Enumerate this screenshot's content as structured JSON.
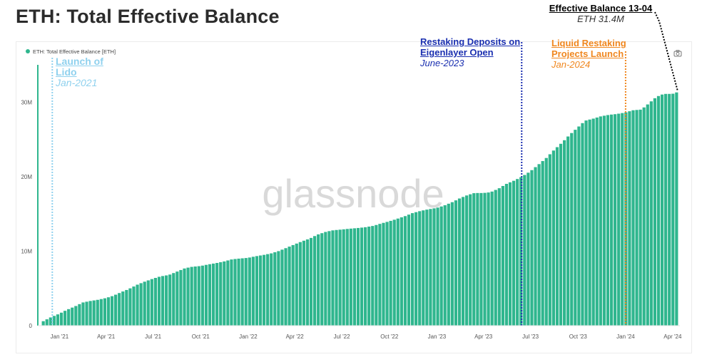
{
  "page_title": "ETH: Total Effective Balance",
  "watermark": "glassnode",
  "legend_label": "ETH: Total Effective Balance [ETH]",
  "colors": {
    "series": "#2fb68e",
    "lido": "#8fd1ee",
    "restaking": "#1a2fb0",
    "lrt": "#f0871f",
    "final": "#000000"
  },
  "annotations": {
    "lido": {
      "title_l1": "Launch of",
      "title_l2": "Lido",
      "subtitle": "Jan-2021",
      "date": "2020-12-18"
    },
    "restaking": {
      "title_l1": "Restaking Deposits on",
      "title_l2": "Eigenlayer Open",
      "subtitle": "June-2023",
      "date": "2023-06-14"
    },
    "lrt": {
      "title_l1": "Liquid Restaking",
      "title_l2": "Projects Launch",
      "subtitle": "Jan-2024",
      "date": "2024-01-01"
    },
    "final": {
      "title": "Effective Balance 13-04",
      "subtitle": "ETH 31.4M",
      "date": "2024-04-13"
    }
  },
  "chart_data": {
    "type": "area",
    "title": "ETH: Total Effective Balance",
    "series": [
      {
        "name": "ETH: Total Effective Balance [ETH]",
        "points": [
          [
            "2020-12-01",
            0.6
          ],
          [
            "2020-12-15",
            1.1
          ],
          [
            "2021-01-01",
            1.6
          ],
          [
            "2021-01-15",
            2.1
          ],
          [
            "2021-02-01",
            2.6
          ],
          [
            "2021-02-15",
            3.1
          ],
          [
            "2021-03-01",
            3.3
          ],
          [
            "2021-03-15",
            3.45
          ],
          [
            "2021-04-01",
            3.7
          ],
          [
            "2021-04-15",
            4.0
          ],
          [
            "2021-05-01",
            4.5
          ],
          [
            "2021-05-15",
            4.9
          ],
          [
            "2021-06-01",
            5.5
          ],
          [
            "2021-06-15",
            5.9
          ],
          [
            "2021-07-01",
            6.3
          ],
          [
            "2021-07-15",
            6.6
          ],
          [
            "2021-08-01",
            6.8
          ],
          [
            "2021-08-15",
            7.2
          ],
          [
            "2021-09-01",
            7.7
          ],
          [
            "2021-09-15",
            7.9
          ],
          [
            "2021-10-01",
            8.0
          ],
          [
            "2021-10-15",
            8.2
          ],
          [
            "2021-11-01",
            8.4
          ],
          [
            "2021-11-15",
            8.6
          ],
          [
            "2021-12-01",
            8.9
          ],
          [
            "2021-12-15",
            9.0
          ],
          [
            "2022-01-01",
            9.1
          ],
          [
            "2022-01-15",
            9.3
          ],
          [
            "2022-02-01",
            9.5
          ],
          [
            "2022-02-15",
            9.7
          ],
          [
            "2022-03-01",
            10.0
          ],
          [
            "2022-03-15",
            10.4
          ],
          [
            "2022-04-01",
            10.9
          ],
          [
            "2022-04-15",
            11.3
          ],
          [
            "2022-05-01",
            11.7
          ],
          [
            "2022-05-15",
            12.2
          ],
          [
            "2022-06-01",
            12.6
          ],
          [
            "2022-06-15",
            12.8
          ],
          [
            "2022-07-01",
            12.9
          ],
          [
            "2022-07-15",
            13.0
          ],
          [
            "2022-08-01",
            13.1
          ],
          [
            "2022-08-15",
            13.2
          ],
          [
            "2022-09-01",
            13.4
          ],
          [
            "2022-09-15",
            13.7
          ],
          [
            "2022-10-01",
            14.0
          ],
          [
            "2022-10-15",
            14.3
          ],
          [
            "2022-11-01",
            14.7
          ],
          [
            "2022-11-15",
            15.1
          ],
          [
            "2022-12-01",
            15.4
          ],
          [
            "2022-12-15",
            15.6
          ],
          [
            "2023-01-01",
            15.8
          ],
          [
            "2023-01-15",
            16.1
          ],
          [
            "2023-02-01",
            16.6
          ],
          [
            "2023-02-15",
            17.1
          ],
          [
            "2023-03-01",
            17.5
          ],
          [
            "2023-03-15",
            17.8
          ],
          [
            "2023-04-01",
            17.8
          ],
          [
            "2023-04-15",
            17.9
          ],
          [
            "2023-05-01",
            18.4
          ],
          [
            "2023-05-15",
            19.0
          ],
          [
            "2023-06-01",
            19.5
          ],
          [
            "2023-06-15",
            20.0
          ],
          [
            "2023-07-01",
            20.7
          ],
          [
            "2023-07-15",
            21.5
          ],
          [
            "2023-08-01",
            22.5
          ],
          [
            "2023-08-15",
            23.5
          ],
          [
            "2023-09-01",
            24.6
          ],
          [
            "2023-09-15",
            25.6
          ],
          [
            "2023-10-01",
            26.6
          ],
          [
            "2023-10-15",
            27.5
          ],
          [
            "2023-11-01",
            27.8
          ],
          [
            "2023-11-15",
            28.1
          ],
          [
            "2023-12-01",
            28.3
          ],
          [
            "2023-12-15",
            28.4
          ],
          [
            "2024-01-01",
            28.6
          ],
          [
            "2024-01-15",
            28.9
          ],
          [
            "2024-02-01",
            29.0
          ],
          [
            "2024-02-15",
            29.8
          ],
          [
            "2024-03-01",
            30.7
          ],
          [
            "2024-03-15",
            31.1
          ],
          [
            "2024-04-01",
            31.1
          ],
          [
            "2024-04-13",
            31.4
          ]
        ]
      }
    ],
    "x_start": "2020-11-20",
    "x_end": "2024-04-15",
    "ylim": [
      0,
      35
    ],
    "y_unit": "M",
    "y_ticks": [
      {
        "value": 0,
        "label": "0"
      },
      {
        "value": 10,
        "label": "10M"
      },
      {
        "value": 20,
        "label": "20M"
      },
      {
        "value": 30,
        "label": "30M"
      }
    ],
    "x_ticks": [
      {
        "date": "2021-01-01",
        "label": "Jan '21"
      },
      {
        "date": "2021-04-01",
        "label": "Apr '21"
      },
      {
        "date": "2021-07-01",
        "label": "Jul '21"
      },
      {
        "date": "2021-10-01",
        "label": "Oct '21"
      },
      {
        "date": "2022-01-01",
        "label": "Jan '22"
      },
      {
        "date": "2022-04-01",
        "label": "Apr '22"
      },
      {
        "date": "2022-07-01",
        "label": "Jul '22"
      },
      {
        "date": "2022-10-01",
        "label": "Oct '22"
      },
      {
        "date": "2023-01-01",
        "label": "Jan '23"
      },
      {
        "date": "2023-04-01",
        "label": "Apr '23"
      },
      {
        "date": "2023-07-01",
        "label": "Jul '23"
      },
      {
        "date": "2023-10-01",
        "label": "Oct '23"
      },
      {
        "date": "2024-01-01",
        "label": "Jan '24"
      },
      {
        "date": "2024-04-01",
        "label": "Apr '24"
      }
    ],
    "grid": false,
    "legend_position": "top-left"
  }
}
